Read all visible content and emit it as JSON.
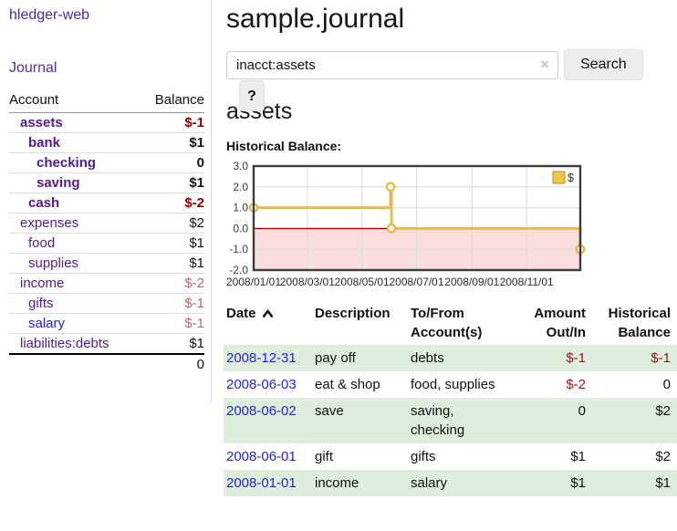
{
  "sidebar": {
    "brand": "hledger-web",
    "nav_journal": "Journal",
    "accounts": {
      "header_account": "Account",
      "header_balance": "Balance",
      "rows": [
        {
          "name": "assets",
          "balance": "$-1"
        },
        {
          "name": "bank",
          "balance": "$1"
        },
        {
          "name": "checking",
          "balance": "0"
        },
        {
          "name": "saving",
          "balance": "$1"
        },
        {
          "name": "cash",
          "balance": "$-2"
        },
        {
          "name": "expenses",
          "balance": "$2"
        },
        {
          "name": "food",
          "balance": "$1"
        },
        {
          "name": "supplies",
          "balance": "$1"
        },
        {
          "name": "income",
          "balance": "$-2"
        },
        {
          "name": "gifts",
          "balance": "$-1"
        },
        {
          "name": "salary",
          "balance": "$-1"
        },
        {
          "name": "liabilities:debts",
          "balance": "$1"
        }
      ],
      "total": "0"
    }
  },
  "main": {
    "title": "sample.journal",
    "search": {
      "value": "inacct:assets",
      "clear_icon": "×",
      "search_button": "Search",
      "help_button": "?"
    },
    "account_heading": "assets",
    "chart_label": "Historical Balance:"
  },
  "chart_data": {
    "type": "line",
    "step": true,
    "title": "Historical Balance:",
    "x_start": "2008-01-01",
    "x_end": "2008-12-31",
    "ylim": [
      -2,
      3
    ],
    "y_ticks": [
      "3.0",
      "2.0",
      "1.0",
      "0.0",
      "-1.0",
      "-2.0"
    ],
    "x_ticks": [
      {
        "date": "2008-01-01",
        "label": "2008/01/01"
      },
      {
        "date": "2008-03-01",
        "label": "2008/03/01"
      },
      {
        "date": "2008-05-01",
        "label": "2008/05/01"
      },
      {
        "date": "2008-07-01",
        "label": "2008/07/01"
      },
      {
        "date": "2008-09-01",
        "label": "2008/09/01"
      },
      {
        "date": "2008-11-01",
        "label": "2008/11/01"
      }
    ],
    "series": [
      {
        "name": "$",
        "color": "#e3bc4d",
        "points": [
          {
            "date": "2008-01-01",
            "value": 1
          },
          {
            "date": "2008-06-02",
            "value": 2
          },
          {
            "date": "2008-06-03",
            "value": 0
          },
          {
            "date": "2008-12-31",
            "value": -1
          }
        ]
      }
    ],
    "legend": [
      {
        "label": "$",
        "color": "#eec544",
        "position": "top-right"
      }
    ],
    "grid": true,
    "zero_line_color": "#a40000",
    "negative_fill": "#fadddd"
  },
  "register": {
    "headers": {
      "date": "Date",
      "description": "Description",
      "accounts": "To/From\nAccount(s)",
      "amount": "Amount\nOut/In",
      "balance": "Historical\nBalance"
    },
    "rows": [
      {
        "date": "2008-12-31",
        "description": "pay off",
        "accounts": "debts",
        "amount": "$-1",
        "balance": "$-1"
      },
      {
        "date": "2008-06-03",
        "description": "eat & shop",
        "accounts": "food, supplies",
        "amount": "$-2",
        "balance": "0"
      },
      {
        "date": "2008-06-02",
        "description": "save",
        "accounts": "saving,\nchecking",
        "amount": "0",
        "balance": "$2"
      },
      {
        "date": "2008-06-01",
        "description": "gift",
        "accounts": "gifts",
        "amount": "$1",
        "balance": "$2"
      },
      {
        "date": "2008-01-01",
        "description": "income",
        "accounts": "salary",
        "amount": "$1",
        "balance": "$1"
      }
    ]
  },
  "colors": {
    "accent_purple": "#551a8b",
    "link_blue": "#2323cf",
    "negative_strong": "#8b0000",
    "negative_muted": "#b5686b",
    "row_stripe_green": "#ddeedd",
    "chart_line_gold": "#e3bc4d",
    "chart_negative_fill": "#fadddd",
    "chart_zero_line": "#a40000"
  }
}
